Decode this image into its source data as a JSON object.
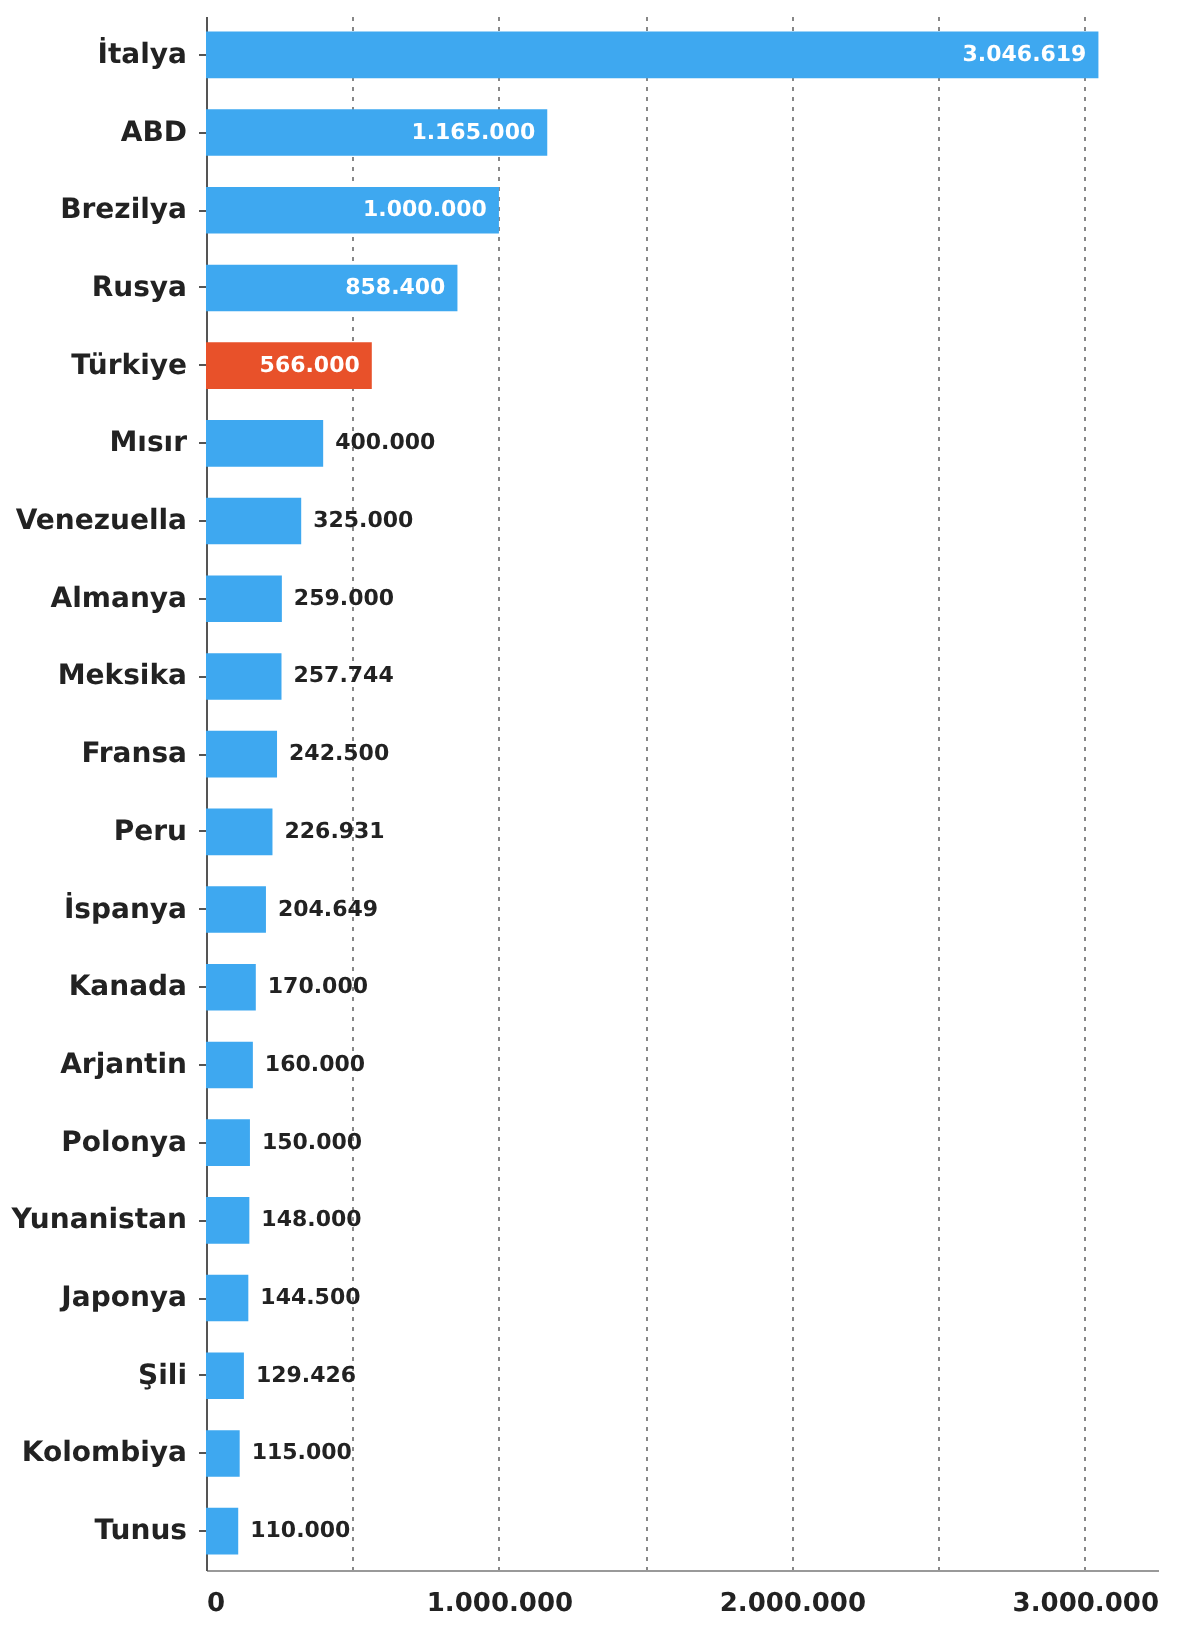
{
  "chart_data": {
    "type": "bar",
    "orientation": "horizontal",
    "categories": [
      "İtalya",
      "ABD",
      "Brezilya",
      "Rusya",
      "Türkiye",
      "Mısır",
      "Venezuella",
      "Almanya",
      "Meksika",
      "Fransa",
      "Peru",
      "İspanya",
      "Kanada",
      "Arjantin",
      "Polonya",
      "Yunanistan",
      "Japonya",
      "Şili",
      "Kolombiya",
      "Tunus"
    ],
    "values": [
      3046619,
      1165000,
      1000000,
      858400,
      566000,
      400000,
      325000,
      259000,
      257744,
      242500,
      226931,
      204649,
      170000,
      160000,
      150000,
      148000,
      144500,
      129426,
      115000,
      110000
    ],
    "value_labels": [
      "3.046.619",
      "1.165.000",
      "1.000.000",
      "858.400",
      "566.000",
      "400.000",
      "325.000",
      "259.000",
      "257.744",
      "242.500",
      "226.931",
      "204.649",
      "170.000",
      "160.000",
      "150.000",
      "148.000",
      "144.500",
      "129.426",
      "115.000",
      "110.000"
    ],
    "colors": [
      "#3ea8f0",
      "#3ea8f0",
      "#3ea8f0",
      "#3ea8f0",
      "#e8512a",
      "#3ea8f0",
      "#3ea8f0",
      "#3ea8f0",
      "#3ea8f0",
      "#3ea8f0",
      "#3ea8f0",
      "#3ea8f0",
      "#3ea8f0",
      "#3ea8f0",
      "#3ea8f0",
      "#3ea8f0",
      "#3ea8f0",
      "#3ea8f0",
      "#3ea8f0",
      "#3ea8f0"
    ],
    "xlim": [
      0,
      3250000
    ],
    "xticks": [
      0,
      {
        "value": 500000,
        "label": null
      },
      {
        "value": 1000000,
        "label": "1.000.000"
      },
      {
        "value": 1500000,
        "label": null
      },
      {
        "value": 2000000,
        "label": "2.000.000"
      },
      {
        "value": 2500000,
        "label": null
      },
      {
        "value": 3000000,
        "label": "3.000.000"
      }
    ],
    "grid": "x"
  }
}
